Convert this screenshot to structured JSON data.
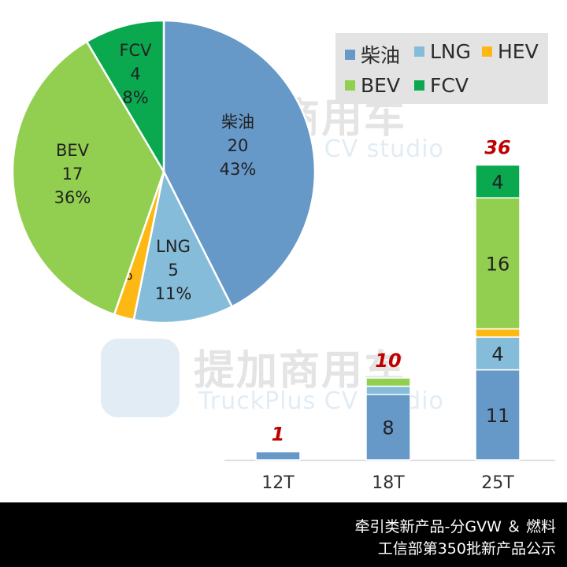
{
  "caption": {
    "line1": "牵引类新产品-分GVW ＆ 燃料",
    "line2": "工信部第350批新产品公示"
  },
  "watermark": {
    "cn": "提加商用车",
    "en": "TruckPlus CV studio"
  },
  "legend": [
    {
      "name": "柴油",
      "color": "#6698c8"
    },
    {
      "name": "LNG",
      "color": "#84bcd9"
    },
    {
      "name": "HEV",
      "color": "#fdb813"
    },
    {
      "name": "BEV",
      "color": "#92cf50"
    },
    {
      "name": "FCV",
      "color": "#0aa84f"
    }
  ],
  "chart_data": [
    {
      "type": "pie",
      "slices": [
        {
          "name": "柴油",
          "value": 20,
          "percent": "43%",
          "color": "#6698c8",
          "label": [
            "柴油",
            "20",
            "43%"
          ]
        },
        {
          "name": "LNG",
          "value": 5,
          "percent": "11%",
          "color": "#84bcd9",
          "label": [
            "LNG",
            "5",
            "11%"
          ]
        },
        {
          "name": "HEV",
          "value": 1,
          "percent": "2%",
          "color": "#fdb813",
          "label": [
            "HEV",
            "1，2%"
          ]
        },
        {
          "name": "BEV",
          "value": 17,
          "percent": "36%",
          "color": "#92cf50",
          "label": [
            "BEV",
            "17",
            "36%"
          ]
        },
        {
          "name": "FCV",
          "value": 4,
          "percent": "8%",
          "color": "#0aa84f",
          "label": [
            "FCV",
            "4",
            "8%"
          ]
        }
      ]
    },
    {
      "type": "bar",
      "stacked": true,
      "categories": [
        "12T",
        "18T",
        "25T"
      ],
      "series": [
        {
          "name": "柴油",
          "color": "#6698c8",
          "values": [
            1,
            8,
            11
          ]
        },
        {
          "name": "LNG",
          "color": "#84bcd9",
          "values": [
            0,
            1,
            4
          ]
        },
        {
          "name": "HEV",
          "color": "#fdb813",
          "values": [
            0,
            0,
            1
          ]
        },
        {
          "name": "BEV",
          "color": "#92cf50",
          "values": [
            0,
            1,
            16
          ]
        },
        {
          "name": "FCV",
          "color": "#0aa84f",
          "values": [
            0,
            0,
            4
          ]
        }
      ],
      "totals": [
        1,
        10,
        36
      ],
      "segment_labels": [
        [],
        [
          "8"
        ],
        [
          "11",
          "4",
          "16",
          "4"
        ]
      ]
    }
  ]
}
